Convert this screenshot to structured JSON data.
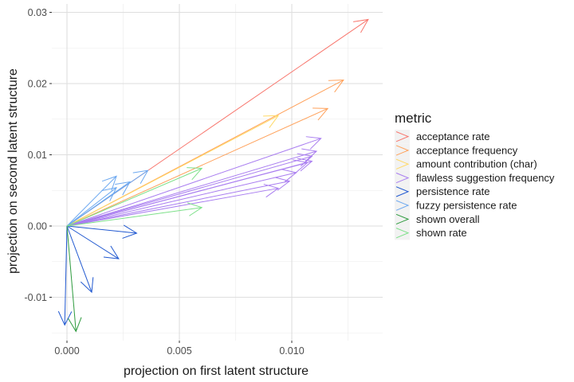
{
  "chart_data": {
    "type": "vector",
    "title": "",
    "xlabel": "projection on first latent structure",
    "ylabel": "projection on second latent structure",
    "xlim": [
      -0.00055,
      0.01395
    ],
    "ylim": [
      -0.0161,
      0.0312
    ],
    "x_ticks": [
      0.0,
      0.005,
      0.01
    ],
    "x_tick_labels": [
      "0.000",
      "0.005",
      "0.010"
    ],
    "y_ticks": [
      -0.01,
      0.0,
      0.01,
      0.02,
      0.03
    ],
    "y_tick_labels": [
      "-0.01",
      "0.00",
      "0.01",
      "0.02",
      "0.03"
    ],
    "grid": true,
    "legend_title": "metric",
    "legend_position": "right",
    "origin": [
      0,
      0
    ],
    "series": [
      {
        "name": "acceptance rate",
        "color": "#F8766D",
        "arrows": [
          [
            0.0134,
            0.029
          ]
        ]
      },
      {
        "name": "acceptance frequency",
        "color": "#FFA15A",
        "arrows": [
          [
            0.0123,
            0.0205
          ],
          [
            0.0116,
            0.0165
          ]
        ]
      },
      {
        "name": "amount contribution (char)",
        "color": "#FFD966",
        "arrows": [
          [
            0.0094,
            0.0155
          ]
        ]
      },
      {
        "name": "flawless suggestion frequency",
        "color": "#A97DF0",
        "arrows": [
          [
            0.0113,
            0.0123
          ],
          [
            0.0111,
            0.0105
          ],
          [
            0.0109,
            0.0098
          ],
          [
            0.0109,
            0.0091
          ],
          [
            0.0107,
            0.0089
          ],
          [
            0.0102,
            0.0075
          ],
          [
            0.0099,
            0.0063
          ],
          [
            0.0094,
            0.0053
          ]
        ]
      },
      {
        "name": "persistence rate",
        "color": "#2058D0",
        "arrows": [
          [
            0.0031,
            -0.001
          ],
          [
            0.0023,
            -0.0046
          ],
          [
            0.0011,
            -0.0093
          ],
          [
            -0.0001,
            -0.0139
          ]
        ]
      },
      {
        "name": "fuzzy persistence rate",
        "color": "#6CA8F0",
        "arrows": [
          [
            0.0022,
            0.007
          ],
          [
            0.0028,
            0.0062
          ],
          [
            0.0036,
            0.0078
          ],
          [
            0.0022,
            0.0054
          ]
        ]
      },
      {
        "name": "shown overall",
        "color": "#2E9B3E",
        "arrows": [
          [
            0.0004,
            -0.0148
          ]
        ]
      },
      {
        "name": "shown rate",
        "color": "#7EE08A",
        "arrows": [
          [
            0.006,
            0.0081
          ],
          [
            0.006,
            0.0026
          ]
        ]
      }
    ]
  },
  "legend": {
    "title": "metric",
    "items": [
      {
        "label": "acceptance rate",
        "color": "#F8766D"
      },
      {
        "label": "acceptance frequency",
        "color": "#FFA15A"
      },
      {
        "label": "amount contribution (char)",
        "color": "#FFD966"
      },
      {
        "label": "flawless suggestion frequency",
        "color": "#A97DF0"
      },
      {
        "label": "persistence rate",
        "color": "#2058D0"
      },
      {
        "label": "fuzzy persistence rate",
        "color": "#6CA8F0"
      },
      {
        "label": "shown overall",
        "color": "#2E9B3E"
      },
      {
        "label": "shown rate",
        "color": "#7EE08A"
      }
    ]
  }
}
